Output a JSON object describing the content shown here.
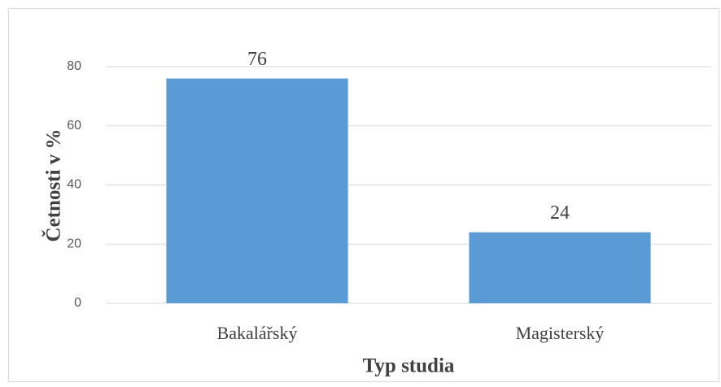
{
  "chart_data": {
    "type": "bar",
    "x_label": "Typ studia",
    "y_label": "Četnosti v %",
    "categories": [
      "Bakalářský",
      "Magisterský"
    ],
    "values": [
      76,
      24
    ],
    "color": "#5b9bd5",
    "ylim": [
      0,
      80
    ],
    "yticks": [
      0,
      20,
      40,
      60,
      80
    ],
    "grid": true
  }
}
